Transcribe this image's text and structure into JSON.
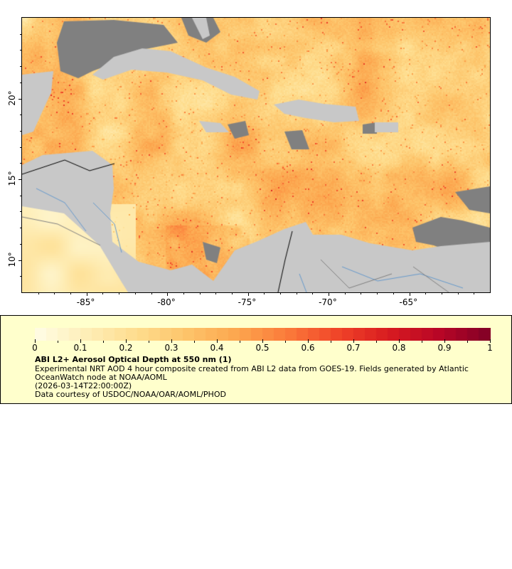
{
  "map": {
    "lon_ticks": [
      "-85°",
      "-80°",
      "-75°",
      "-70°",
      "-65°"
    ],
    "lat_ticks": [
      "20°",
      "15°",
      "10°"
    ],
    "lon_range": [
      -89,
      -60
    ],
    "lat_range": [
      8,
      25
    ],
    "colors": {
      "land": "#c8c8c8",
      "no_data": "#808080",
      "borders": "#808080",
      "rivers": "#6699cc",
      "national_borders": "#000000"
    }
  },
  "legend": {
    "colorbar_ticks": [
      "0",
      "0.1",
      "0.2",
      "0.3",
      "0.4",
      "0.5",
      "0.6",
      "0.7",
      "0.8",
      "0.9",
      "1"
    ],
    "colorbar_range": [
      0,
      1
    ],
    "colormap": [
      "#fffde6",
      "#feeeb8",
      "#fedd8e",
      "#fdc46a",
      "#fca64e",
      "#fb7a3a",
      "#f04428",
      "#d81b20",
      "#b80626",
      "#800026"
    ],
    "title": "ABI L2+ Aerosol Optical Depth at 550 nm (1)",
    "line1": "Experimental NRT AOD 4 hour composite created from ABI L2 data from GOES-19. Fields generated by Atlantic",
    "line2": "OceanWatch node at NOAA/AOML",
    "line3": "(2026-03-14T22:00:00Z)",
    "line4": "Data courtesy of USDOC/NOAA/OAR/AOML/PHOD"
  }
}
